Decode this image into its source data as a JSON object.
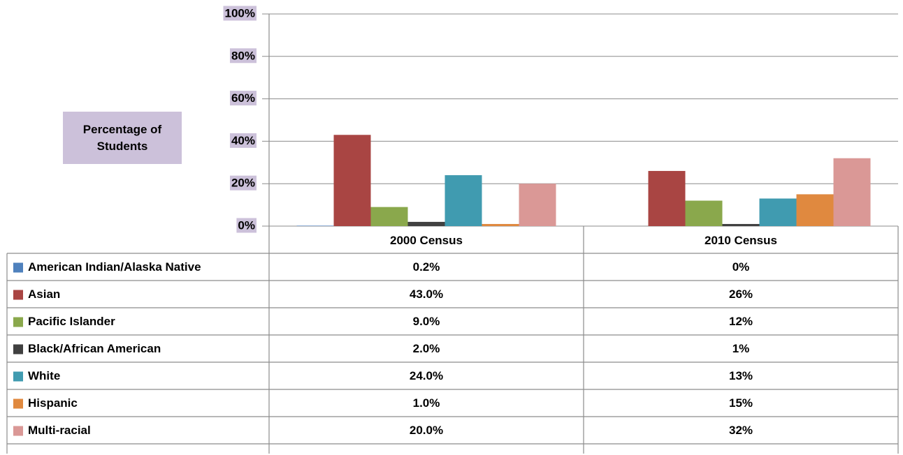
{
  "chart_data": {
    "type": "bar",
    "y_axis_label": "Percentage of Students",
    "categories": [
      "2000 Census",
      "2010 Census"
    ],
    "ylim": [
      0,
      100
    ],
    "yticks": [
      {
        "value": 0,
        "label": "0%"
      },
      {
        "value": 20,
        "label": "20%"
      },
      {
        "value": 40,
        "label": "40%"
      },
      {
        "value": 60,
        "label": "60%"
      },
      {
        "value": 80,
        "label": "80%"
      },
      {
        "value": 100,
        "label": "100%"
      }
    ],
    "grid": true,
    "series": [
      {
        "name": "American Indian/Alaska Native",
        "color": "#4f81bd",
        "values": [
          0.2,
          0
        ],
        "value_labels": [
          "0.2%",
          "0%"
        ]
      },
      {
        "name": "Asian",
        "color": "#a94543",
        "values": [
          43.0,
          26
        ],
        "value_labels": [
          "43.0%",
          "26%"
        ]
      },
      {
        "name": "Pacific Islander",
        "color": "#8aa84c",
        "values": [
          9.0,
          12
        ],
        "value_labels": [
          "9.0%",
          "12%"
        ]
      },
      {
        "name": "Black/African American",
        "color": "#404040",
        "values": [
          2.0,
          1
        ],
        "value_labels": [
          "2.0%",
          "1%"
        ]
      },
      {
        "name": "White",
        "color": "#409bb0",
        "values": [
          24.0,
          13
        ],
        "value_labels": [
          "24.0%",
          "13%"
        ]
      },
      {
        "name": "Hispanic",
        "color": "#e0893f",
        "values": [
          1.0,
          15
        ],
        "value_labels": [
          "1.0%",
          "15%"
        ]
      },
      {
        "name": "Multi-racial",
        "color": "#da9896",
        "values": [
          20.0,
          32
        ],
        "value_labels": [
          "20.0%",
          "32%"
        ]
      }
    ]
  }
}
